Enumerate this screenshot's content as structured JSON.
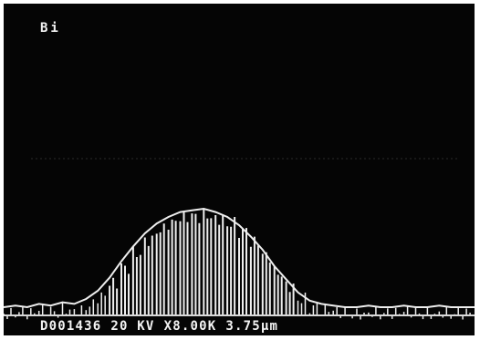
{
  "screen": {
    "element_label": "Bi",
    "footer": {
      "image_number": "D001436",
      "voltage": "20 KV",
      "magnification": "X8.00K",
      "scale": "3.75µm"
    }
  },
  "colors": {
    "background": "#050505",
    "signal": "#eeeeee",
    "frame": "#ffffff"
  },
  "chart_data": {
    "type": "line",
    "title": "",
    "xlabel": "",
    "ylabel": "",
    "series": [
      {
        "values": [
          0.05,
          0.06,
          0.05,
          0.07,
          0.06,
          0.08,
          0.07,
          0.1,
          0.15,
          0.23,
          0.33,
          0.42,
          0.5,
          0.56,
          0.6,
          0.63,
          0.64,
          0.65,
          0.63,
          0.6,
          0.55,
          0.48,
          0.4,
          0.3,
          0.22,
          0.14,
          0.09,
          0.07,
          0.06,
          0.05,
          0.05,
          0.06,
          0.05,
          0.05,
          0.06,
          0.05,
          0.05,
          0.06,
          0.05,
          0.05,
          0.05
        ]
      }
    ]
  }
}
